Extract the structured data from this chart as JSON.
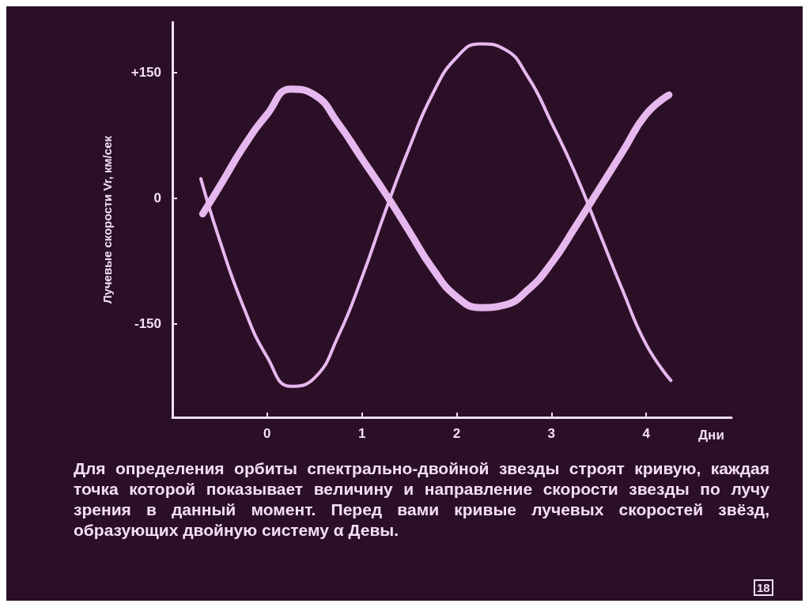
{
  "chart_data": {
    "type": "line",
    "ylabel": "Лучевые скорости Vr, км/сек",
    "xlabel": "Дни",
    "xlim": [
      -1.0,
      4.9
    ],
    "xticks": [
      0,
      1,
      2,
      3,
      4
    ],
    "ylim": [
      -262,
      210
    ],
    "yticks": [
      {
        "value": 150,
        "label": "+150"
      },
      0,
      -150
    ],
    "marker": "none",
    "line_style": "solid",
    "series": [
      {
        "color": "#e6b8ee",
        "x": [
          -0.68,
          -0.5,
          -0.25,
          0,
          0.25,
          0.5,
          0.75,
          1.0,
          1.25,
          1.5,
          1.75,
          2.0,
          2.25,
          2.5,
          2.75,
          3.0,
          3.25,
          3.5,
          3.75,
          4.0,
          4.24
        ],
        "values": [
          -19,
          14,
          61,
          100,
          130,
          123,
          89,
          47,
          5,
          -40,
          -85,
          -118,
          -131,
          -128,
          -110,
          -78,
          -35,
          10,
          55,
          100,
          123
        ]
      },
      {
        "color": "#e6b8ee",
        "x": [
          -0.7,
          -0.5,
          -0.25,
          0,
          0.25,
          0.5,
          0.75,
          1.0,
          1.25,
          1.5,
          1.75,
          2.0,
          2.25,
          2.5,
          2.75,
          3.0,
          3.25,
          3.5,
          3.75,
          4.0,
          4.26
        ],
        "values": [
          23,
          -51,
          -130,
          -190,
          -225,
          -215,
          -165,
          -95,
          -15,
          60,
          125,
          168,
          184,
          178,
          145,
          90,
          30,
          -40,
          -110,
          -175,
          -218
        ]
      }
    ],
    "annotations": [
      "Для определения орбиты спектрально-двойной звезды строят кривую, каждая точка которой показывает величину и направление скорости звезды по лучу зрения в данный момент. Перед вами кривые лучевых скоростей звёзд, образующих двойную систему α Девы.",
      "18"
    ]
  }
}
